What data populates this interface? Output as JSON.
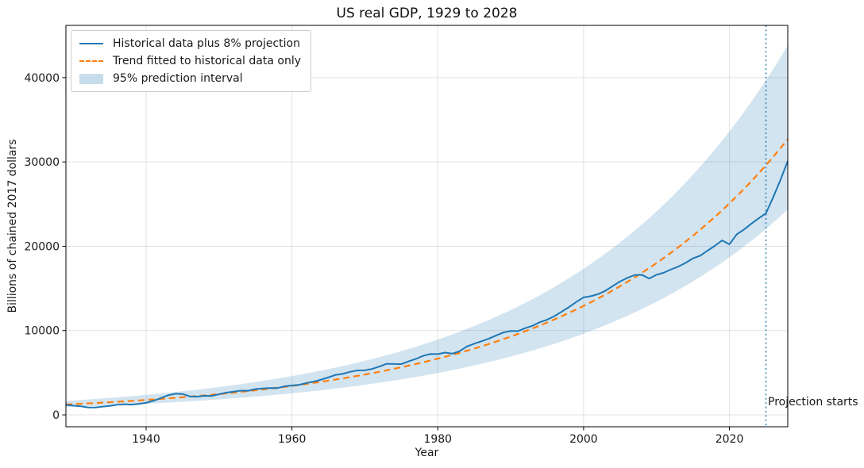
{
  "figure": {
    "title": "US real GDP, 1929 to 2028",
    "xlabel": "Year",
    "ylabel": "Billions of chained 2017 dollars"
  },
  "legend": {
    "position": "upper left",
    "items": [
      {
        "label": "Historical data plus 8% projection",
        "swatch": "solid-line",
        "color": "#1f77b4"
      },
      {
        "label": "Trend fitted to historical data only",
        "swatch": "dashed-line",
        "color": "#ff7f0e"
      },
      {
        "label": "95% prediction interval",
        "swatch": "patch",
        "color": "rgba(31,119,180,0.25)"
      }
    ]
  },
  "chart_data": {
    "type": "line",
    "title": "US real GDP, 1929 to 2028",
    "xlabel": "Year",
    "ylabel": "Billions of chained 2017 dollars",
    "xlim": [
      1929,
      2028
    ],
    "ylim": [
      -1410,
      46200
    ],
    "xticks": [
      1940,
      1960,
      1980,
      2000,
      2020
    ],
    "yticks": [
      0,
      10000,
      20000,
      30000,
      40000
    ],
    "grid": true,
    "legend_position": "upper left",
    "series": [
      {
        "name": "Historical data plus 8% projection",
        "color": "#1f77b4",
        "style": "solid",
        "years": [
          1929,
          1930,
          1931,
          1932,
          1933,
          1934,
          1935,
          1936,
          1937,
          1938,
          1939,
          1940,
          1941,
          1942,
          1943,
          1944,
          1945,
          1946,
          1947,
          1948,
          1949,
          1950,
          1951,
          1952,
          1953,
          1954,
          1955,
          1956,
          1957,
          1958,
          1959,
          1960,
          1961,
          1962,
          1963,
          1964,
          1965,
          1966,
          1967,
          1968,
          1969,
          1970,
          1971,
          1972,
          1973,
          1974,
          1975,
          1976,
          1977,
          1978,
          1979,
          1980,
          1981,
          1982,
          1983,
          1984,
          1985,
          1986,
          1987,
          1988,
          1989,
          1990,
          1991,
          1992,
          1993,
          1994,
          1995,
          1996,
          1997,
          1998,
          1999,
          2000,
          2001,
          2002,
          2003,
          2004,
          2005,
          2006,
          2007,
          2008,
          2009,
          2010,
          2011,
          2012,
          2013,
          2014,
          2015,
          2016,
          2017,
          2018,
          2019,
          2020,
          2021,
          2022,
          2023,
          2024,
          2025,
          2026,
          2027,
          2028
        ],
        "values": [
          1191,
          1090,
          1020,
          888,
          877,
          972,
          1059,
          1195,
          1257,
          1214,
          1311,
          1424,
          1671,
          1986,
          2321,
          2508,
          2477,
          2193,
          2170,
          2260,
          2247,
          2444,
          2641,
          2749,
          2877,
          2860,
          3064,
          3128,
          3193,
          3170,
          3392,
          3479,
          3569,
          3784,
          3949,
          4177,
          4448,
          4742,
          4872,
          5111,
          5269,
          5279,
          5452,
          5739,
          6063,
          6031,
          6019,
          6344,
          6636,
          7003,
          7225,
          7206,
          7391,
          7258,
          7560,
          8109,
          8445,
          8738,
          9041,
          9419,
          9766,
          9951,
          9940,
          10290,
          10570,
          10996,
          11291,
          11715,
          12240,
          12788,
          13394,
          13943,
          14078,
          14320,
          14722,
          15286,
          15817,
          16253,
          16585,
          16603,
          16173,
          16616,
          16869,
          17255,
          17593,
          18035,
          18570,
          18886,
          19479,
          20056,
          20692,
          20234,
          21408,
          21989,
          22671,
          23305,
          23900,
          25812,
          27877,
          30107
        ]
      },
      {
        "name": "Trend fitted to historical data only",
        "color": "#ff7f0e",
        "style": "dashed",
        "model": "exponential",
        "year_start": 1929,
        "value_start": 1230,
        "year_end": 2028,
        "value_end": 32700,
        "growth_rate_pct_per_year": 3.3
      },
      {
        "name": "95% prediction interval",
        "type": "band",
        "around": "trend",
        "color": "#1f77b4",
        "alpha": 0.2,
        "lower_ratio": 0.745,
        "upper_ratio": 1.34
      }
    ],
    "projection": {
      "start_year": 2025,
      "annual_growth_pct": 8,
      "years": [
        2026,
        2027,
        2028
      ],
      "values": [
        25812,
        27877,
        30107
      ]
    },
    "vline": {
      "year": 2025,
      "label": "Projection starts",
      "style": "dotted",
      "color": "#1f77b4",
      "alpha": 0.75
    }
  }
}
